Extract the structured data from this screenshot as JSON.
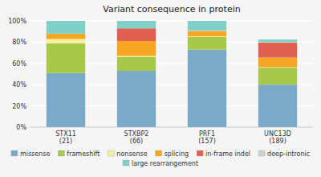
{
  "chart_data": {
    "type": "bar",
    "stacked": true,
    "title": "Variant consequence in protein",
    "categories": [
      "STX11\n(21)",
      "STXBP2\n(66)",
      "PRF1\n(157)",
      "UNC13D\n(189)"
    ],
    "series": [
      {
        "name": "missense",
        "color": "#7aaac8",
        "values": [
          0.51,
          0.53,
          0.73,
          0.4
        ]
      },
      {
        "name": "frameshift",
        "color": "#a8c84a",
        "values": [
          0.28,
          0.13,
          0.12,
          0.16
        ]
      },
      {
        "name": "nonsense",
        "color": "#f5f0a0",
        "values": [
          0.04,
          0.01,
          0.005,
          0.005
        ]
      },
      {
        "name": "splicing",
        "color": "#f5a623",
        "values": [
          0.05,
          0.14,
          0.05,
          0.09
        ]
      },
      {
        "name": "in-frame indel",
        "color": "#e06050",
        "values": [
          0.0,
          0.12,
          0.0,
          0.14
        ]
      },
      {
        "name": "deep-intronic",
        "color": "#d0d0d0",
        "values": [
          0.0,
          0.0,
          0.005,
          0.005
        ]
      },
      {
        "name": "large rearrangement",
        "color": "#80cfc8",
        "values": [
          0.12,
          0.07,
          0.09,
          0.025
        ]
      }
    ],
    "ylim": [
      0,
      1
    ],
    "yticks": [
      {
        "value": 0,
        "label": "0%"
      },
      {
        "value": 0.2,
        "label": "20%"
      },
      {
        "value": 0.4,
        "label": "40%"
      },
      {
        "value": 0.6,
        "label": "60%"
      },
      {
        "value": 0.8,
        "label": "80%"
      },
      {
        "value": 1.0,
        "label": "100%"
      }
    ],
    "grid": true,
    "legend": "bottom"
  }
}
